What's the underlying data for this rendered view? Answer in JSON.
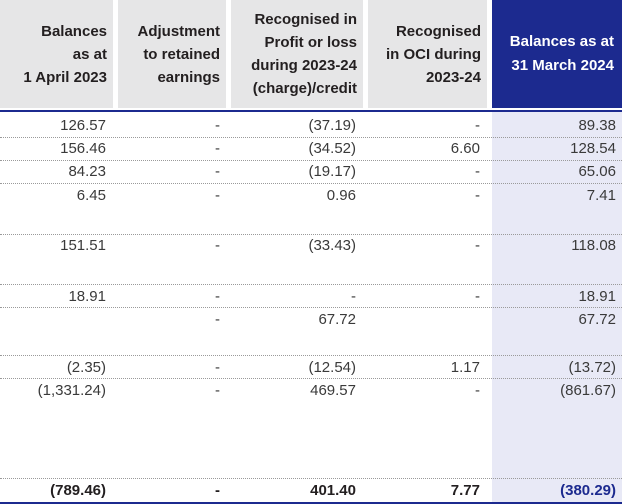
{
  "headers": [
    [
      "Balances",
      "as at",
      "1 April 2023"
    ],
    [
      "Adjustment",
      "to retained",
      "earnings"
    ],
    [
      "Recognised in",
      "Profit or loss",
      "during 2023-24",
      "(charge)/credit"
    ],
    [
      "Recognised",
      "in OCI during",
      "2023-24"
    ],
    [
      "Balances as at",
      "31 March 2024"
    ]
  ],
  "rows": [
    [
      "126.57",
      "-",
      "(37.19)",
      "-",
      "89.38"
    ],
    [
      "156.46",
      "-",
      "(34.52)",
      "6.60",
      "128.54"
    ],
    [
      "84.23",
      "-",
      "(19.17)",
      "-",
      "65.06"
    ],
    [
      "6.45",
      "-",
      "0.96",
      "-",
      "7.41"
    ],
    [
      "151.51",
      "-",
      "(33.43)",
      "-",
      "118.08"
    ],
    [
      "18.91",
      "-",
      "-",
      "-",
      "18.91"
    ],
    [
      "",
      "-",
      "67.72",
      "",
      "67.72"
    ],
    [
      "(2.35)",
      "-",
      "(12.54)",
      "1.17",
      "(13.72)"
    ],
    [
      "(1,331.24)",
      "-",
      "469.57",
      "-",
      "(861.67)"
    ]
  ],
  "total": [
    "(789.46)",
    "-",
    "401.40",
    "7.77",
    "(380.29)"
  ],
  "colors": {
    "accent": "#1c2a8f",
    "header_bg": "#e6e6e7",
    "highlight_bg": "#e8e9f6"
  }
}
